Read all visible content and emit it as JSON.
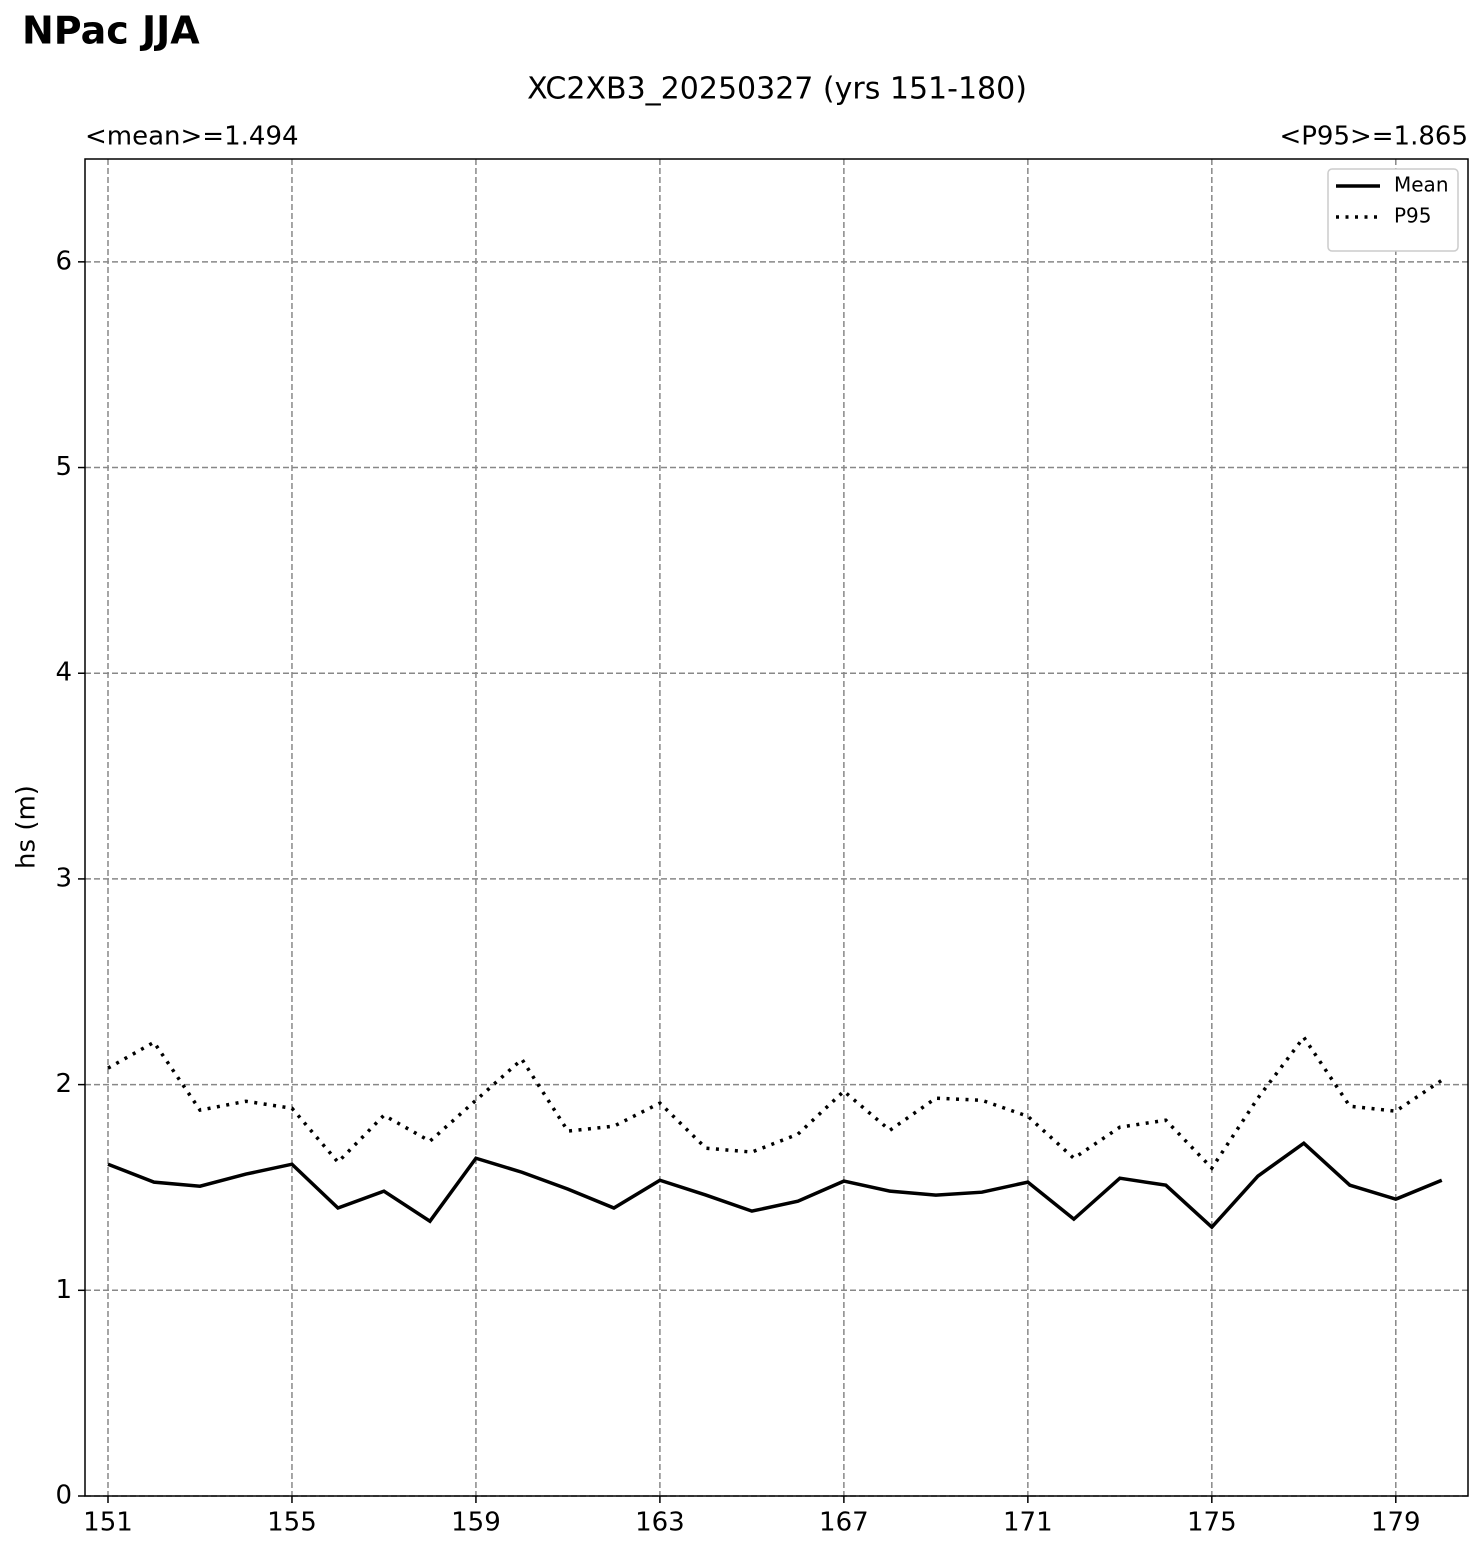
{
  "chart_data": {
    "type": "line",
    "figure_title": "NPac JJA",
    "title": "XC2XB3_20250327 (yrs 151-180)",
    "left_annotation": "<mean>=1.494",
    "right_annotation": "<P95>=1.865",
    "ylabel": "hs (m)",
    "x": [
      151,
      152,
      153,
      154,
      155,
      156,
      157,
      158,
      159,
      160,
      161,
      162,
      163,
      164,
      165,
      166,
      167,
      168,
      169,
      170,
      171,
      172,
      173,
      174,
      175,
      176,
      177,
      178,
      179,
      180
    ],
    "series": [
      {
        "name": "Mean",
        "color": "#000000",
        "dash": "solid",
        "values": [
          1.613,
          1.526,
          1.506,
          1.565,
          1.613,
          1.4,
          1.482,
          1.336,
          1.642,
          1.574,
          1.492,
          1.4,
          1.535,
          1.463,
          1.385,
          1.433,
          1.531,
          1.482,
          1.463,
          1.477,
          1.526,
          1.346,
          1.545,
          1.511,
          1.307,
          1.555,
          1.715,
          1.511,
          1.443,
          1.535
        ]
      },
      {
        "name": "P95",
        "color": "#000000",
        "dash": "dotted",
        "values": [
          2.08,
          2.206,
          1.876,
          1.919,
          1.885,
          1.623,
          1.851,
          1.725,
          1.924,
          2.123,
          1.774,
          1.798,
          1.91,
          1.691,
          1.672,
          1.759,
          1.968,
          1.778,
          1.934,
          1.924,
          1.846,
          1.642,
          1.793,
          1.827,
          1.594,
          1.934,
          2.23,
          1.895,
          1.871,
          2.021
        ]
      }
    ],
    "xlim": [
      150.5,
      180.57
    ],
    "ylim": [
      0,
      6.5
    ],
    "xticks": [
      151,
      155,
      159,
      163,
      167,
      171,
      175,
      179
    ],
    "yticks": [
      0,
      1,
      2,
      3,
      4,
      5,
      6
    ],
    "grid": true,
    "legend": "upper right"
  }
}
